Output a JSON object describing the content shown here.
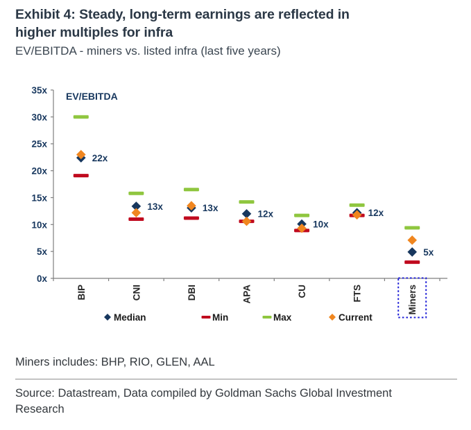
{
  "header": {
    "title_line1": "Exhibit 4: Steady, long-term earnings are reflected in",
    "title_line2": "higher multiples for infra",
    "subtitle": "EV/EBITDA - miners vs. listed infra (last five years)"
  },
  "chart_data": {
    "type": "scatter",
    "inner_title": "EV/EBITDA",
    "categories": [
      "BIP",
      "CNI",
      "DBI",
      "APA",
      "CU",
      "FTS",
      "Miners"
    ],
    "series": [
      {
        "name": "Median",
        "marker": "diamond",
        "color": "#17375e",
        "values": [
          22.4,
          13.4,
          13.1,
          12.0,
          10.1,
          12.2,
          4.9
        ]
      },
      {
        "name": "Min",
        "marker": "dash",
        "color": "#c00a1e",
        "values": [
          19.1,
          11.0,
          11.2,
          10.6,
          8.9,
          11.7,
          3.0
        ]
      },
      {
        "name": "Max",
        "marker": "dash",
        "color": "#8fc63f",
        "values": [
          30.0,
          15.8,
          16.5,
          14.2,
          11.7,
          13.6,
          9.4
        ]
      },
      {
        "name": "Current",
        "marker": "diamond",
        "color": "#f0861f",
        "values": [
          23.0,
          12.2,
          13.5,
          10.6,
          9.3,
          11.8,
          7.1
        ]
      }
    ],
    "value_labels": [
      "22x",
      "13x",
      "13x",
      "12x",
      "10x",
      "12x",
      "5x"
    ],
    "value_label_series": "Median",
    "yticks": [
      0,
      5,
      10,
      15,
      20,
      25,
      30,
      35
    ],
    "ytick_suffix": "x",
    "ylim": [
      0,
      35
    ],
    "grid": false,
    "legend_position": "bottom",
    "highlight_category": "Miners",
    "highlight_box_color": "#2222d8",
    "axis_color": "#7f7f7f"
  },
  "footnotes": {
    "miners_note": "Miners includes: BHP, RIO, GLEN, AAL",
    "source_line1": "Source: Datastream, Data compiled by Goldman Sachs Global Investment",
    "source_line2": "Research"
  }
}
